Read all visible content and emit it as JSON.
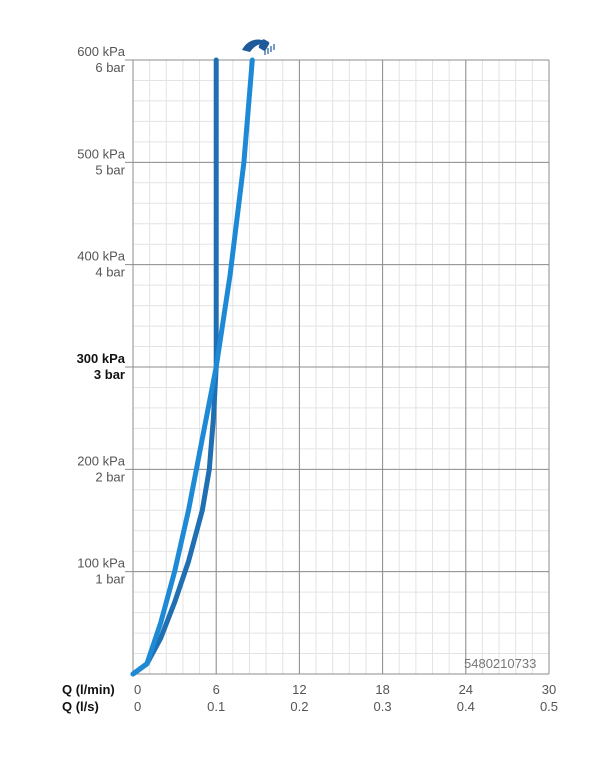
{
  "chart_data": {
    "type": "line",
    "x_unit_primary": "Q (l/min)",
    "x_unit_secondary": "Q (l/s)",
    "x_ticks_primary": [
      "0",
      "6",
      "12",
      "18",
      "24",
      "30"
    ],
    "x_ticks_secondary": [
      "0",
      "0.1",
      "0.2",
      "0.3",
      "0.4",
      "0.5"
    ],
    "xlim": [
      0,
      30
    ],
    "ylim": [
      0,
      600
    ],
    "y_ticks": [
      {
        "value": 100,
        "kpa": "100 kPa",
        "bar": "1 bar",
        "bold": false
      },
      {
        "value": 200,
        "kpa": "200 kPa",
        "bar": "2 bar",
        "bold": false
      },
      {
        "value": 300,
        "kpa": "300 kPa",
        "bar": "3 bar",
        "bold": true
      },
      {
        "value": 400,
        "kpa": "400 kPa",
        "bar": "4 bar",
        "bold": false
      },
      {
        "value": 500,
        "kpa": "500 kPa",
        "bar": "5 bar",
        "bold": false
      },
      {
        "value": 600,
        "kpa": "600 kPa",
        "bar": "6 bar",
        "bold": false
      }
    ],
    "grid": true,
    "series": [
      {
        "color": "#1f6fb2",
        "x": [
          0,
          1,
          2,
          3,
          4,
          5,
          5.5,
          5.8,
          6.0,
          6.0,
          6.0,
          6.0
        ],
        "y": [
          0,
          10,
          35,
          70,
          110,
          160,
          200,
          250,
          300,
          400,
          500,
          600
        ]
      },
      {
        "color": "#1e8ad6",
        "x": [
          0,
          1,
          2,
          3,
          4,
          5,
          6,
          7,
          8,
          8.6
        ],
        "y": [
          0,
          10,
          50,
          100,
          160,
          230,
          300,
          390,
          500,
          600
        ]
      }
    ],
    "annotation": "5480210733",
    "icon": "shower-head-icon"
  }
}
